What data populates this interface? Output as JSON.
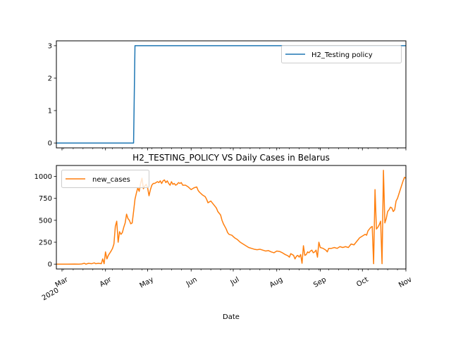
{
  "chart_data": [
    {
      "type": "line",
      "title": "",
      "xlabel": "",
      "ylabel": "",
      "x_range": [
        "2020-02-26",
        "2020-11-01"
      ],
      "ylim": [
        -0.15,
        3.15
      ],
      "yticks": [
        0,
        1,
        2,
        3
      ],
      "grid": false,
      "legend_loc": "upper right",
      "series": [
        {
          "name": "H2_Testing policy",
          "color": "#1f77b4",
          "points": [
            [
              "2020-02-26",
              0
            ],
            [
              "2020-04-21",
              0
            ],
            [
              "2020-04-22",
              3
            ],
            [
              "2020-11-01",
              3
            ]
          ]
        }
      ]
    },
    {
      "type": "line",
      "title": "H2_TESTING_POLICY VS Daily Cases in Belarus",
      "xlabel": "Date",
      "ylabel": "",
      "x_range": [
        "2020-02-26",
        "2020-11-01"
      ],
      "ylim": [
        -55,
        1125
      ],
      "yticks": [
        0,
        250,
        500,
        750,
        1000
      ],
      "grid": false,
      "legend_loc": "upper left",
      "series": [
        {
          "name": "new_cases",
          "color": "#ff7f0e",
          "points": [
            [
              "2020-02-26",
              0
            ],
            [
              "2020-03-01",
              0
            ],
            [
              "2020-03-05",
              0
            ],
            [
              "2020-03-10",
              1
            ],
            [
              "2020-03-13",
              0
            ],
            [
              "2020-03-15",
              2
            ],
            [
              "2020-03-17",
              10
            ],
            [
              "2020-03-18",
              0
            ],
            [
              "2020-03-20",
              10
            ],
            [
              "2020-03-22",
              5
            ],
            [
              "2020-03-24",
              15
            ],
            [
              "2020-03-25",
              5
            ],
            [
              "2020-03-27",
              10
            ],
            [
              "2020-03-29",
              5
            ],
            [
              "2020-03-30",
              60
            ],
            [
              "2020-03-31",
              5
            ],
            [
              "2020-04-01",
              140
            ],
            [
              "2020-04-02",
              60
            ],
            [
              "2020-04-03",
              100
            ],
            [
              "2020-04-05",
              150
            ],
            [
              "2020-04-06",
              180
            ],
            [
              "2020-04-07",
              230
            ],
            [
              "2020-04-08",
              430
            ],
            [
              "2020-04-09",
              490
            ],
            [
              "2020-04-10",
              250
            ],
            [
              "2020-04-11",
              370
            ],
            [
              "2020-04-12",
              340
            ],
            [
              "2020-04-13",
              360
            ],
            [
              "2020-04-14",
              420
            ],
            [
              "2020-04-15",
              470
            ],
            [
              "2020-04-16",
              570
            ],
            [
              "2020-04-17",
              520
            ],
            [
              "2020-04-18",
              500
            ],
            [
              "2020-04-19",
              460
            ],
            [
              "2020-04-20",
              470
            ],
            [
              "2020-04-21",
              600
            ],
            [
              "2020-04-22",
              740
            ],
            [
              "2020-04-23",
              810
            ],
            [
              "2020-04-24",
              870
            ],
            [
              "2020-04-25",
              830
            ],
            [
              "2020-04-26",
              920
            ],
            [
              "2020-04-27",
              980
            ],
            [
              "2020-04-28",
              860
            ],
            [
              "2020-04-29",
              890
            ],
            [
              "2020-04-30",
              910
            ],
            [
              "2020-05-01",
              870
            ],
            [
              "2020-05-02",
              780
            ],
            [
              "2020-05-03",
              850
            ],
            [
              "2020-05-04",
              900
            ],
            [
              "2020-05-05",
              920
            ],
            [
              "2020-05-06",
              920
            ],
            [
              "2020-05-07",
              930
            ],
            [
              "2020-05-08",
              940
            ],
            [
              "2020-05-09",
              930
            ],
            [
              "2020-05-10",
              950
            ],
            [
              "2020-05-11",
              920
            ],
            [
              "2020-05-12",
              950
            ],
            [
              "2020-05-13",
              960
            ],
            [
              "2020-05-14",
              930
            ],
            [
              "2020-05-15",
              950
            ],
            [
              "2020-05-16",
              920
            ],
            [
              "2020-05-17",
              900
            ],
            [
              "2020-05-18",
              940
            ],
            [
              "2020-05-19",
              910
            ],
            [
              "2020-05-20",
              920
            ],
            [
              "2020-05-21",
              900
            ],
            [
              "2020-05-22",
              910
            ],
            [
              "2020-05-23",
              930
            ],
            [
              "2020-05-24",
              920
            ],
            [
              "2020-05-25",
              930
            ],
            [
              "2020-05-26",
              900
            ],
            [
              "2020-05-28",
              900
            ],
            [
              "2020-05-30",
              880
            ],
            [
              "2020-06-01",
              850
            ],
            [
              "2020-06-03",
              870
            ],
            [
              "2020-06-05",
              880
            ],
            [
              "2020-06-06",
              840
            ],
            [
              "2020-06-07",
              820
            ],
            [
              "2020-06-09",
              790
            ],
            [
              "2020-06-11",
              770
            ],
            [
              "2020-06-12",
              740
            ],
            [
              "2020-06-13",
              700
            ],
            [
              "2020-06-15",
              720
            ],
            [
              "2020-06-17",
              680
            ],
            [
              "2020-06-19",
              640
            ],
            [
              "2020-06-20",
              600
            ],
            [
              "2020-06-22",
              560
            ],
            [
              "2020-06-23",
              500
            ],
            [
              "2020-06-24",
              460
            ],
            [
              "2020-06-25",
              430
            ],
            [
              "2020-06-26",
              400
            ],
            [
              "2020-06-27",
              360
            ],
            [
              "2020-06-28",
              340
            ],
            [
              "2020-06-30",
              330
            ],
            [
              "2020-07-02",
              300
            ],
            [
              "2020-07-04",
              280
            ],
            [
              "2020-07-06",
              250
            ],
            [
              "2020-07-08",
              230
            ],
            [
              "2020-07-10",
              210
            ],
            [
              "2020-07-12",
              190
            ],
            [
              "2020-07-14",
              180
            ],
            [
              "2020-07-16",
              170
            ],
            [
              "2020-07-18",
              165
            ],
            [
              "2020-07-20",
              170
            ],
            [
              "2020-07-22",
              160
            ],
            [
              "2020-07-24",
              150
            ],
            [
              "2020-07-26",
              155
            ],
            [
              "2020-07-28",
              140
            ],
            [
              "2020-07-30",
              130
            ],
            [
              "2020-08-01",
              150
            ],
            [
              "2020-08-03",
              145
            ],
            [
              "2020-08-05",
              130
            ],
            [
              "2020-08-07",
              110
            ],
            [
              "2020-08-09",
              95
            ],
            [
              "2020-08-10",
              80
            ],
            [
              "2020-08-11",
              120
            ],
            [
              "2020-08-12",
              110
            ],
            [
              "2020-08-13",
              100
            ],
            [
              "2020-08-14",
              60
            ],
            [
              "2020-08-15",
              90
            ],
            [
              "2020-08-16",
              100
            ],
            [
              "2020-08-17",
              80
            ],
            [
              "2020-08-18",
              110
            ],
            [
              "2020-08-19",
              10
            ],
            [
              "2020-08-20",
              210
            ],
            [
              "2020-08-21",
              100
            ],
            [
              "2020-08-22",
              110
            ],
            [
              "2020-08-23",
              140
            ],
            [
              "2020-08-24",
              130
            ],
            [
              "2020-08-25",
              150
            ],
            [
              "2020-08-26",
              160
            ],
            [
              "2020-08-27",
              130
            ],
            [
              "2020-08-28",
              140
            ],
            [
              "2020-08-29",
              160
            ],
            [
              "2020-08-30",
              80
            ],
            [
              "2020-08-31",
              250
            ],
            [
              "2020-09-01",
              190
            ],
            [
              "2020-09-03",
              180
            ],
            [
              "2020-09-05",
              160
            ],
            [
              "2020-09-06",
              140
            ],
            [
              "2020-09-07",
              180
            ],
            [
              "2020-09-09",
              180
            ],
            [
              "2020-09-11",
              190
            ],
            [
              "2020-09-13",
              180
            ],
            [
              "2020-09-15",
              200
            ],
            [
              "2020-09-17",
              190
            ],
            [
              "2020-09-19",
              200
            ],
            [
              "2020-09-21",
              190
            ],
            [
              "2020-09-23",
              230
            ],
            [
              "2020-09-25",
              220
            ],
            [
              "2020-09-27",
              260
            ],
            [
              "2020-09-29",
              300
            ],
            [
              "2020-10-01",
              320
            ],
            [
              "2020-10-03",
              340
            ],
            [
              "2020-10-04",
              330
            ],
            [
              "2020-10-05",
              380
            ],
            [
              "2020-10-06",
              400
            ],
            [
              "2020-10-07",
              420
            ],
            [
              "2020-10-08",
              430
            ],
            [
              "2020-10-09",
              5
            ],
            [
              "2020-10-10",
              850
            ],
            [
              "2020-10-11",
              400
            ],
            [
              "2020-10-12",
              420
            ],
            [
              "2020-10-13",
              450
            ],
            [
              "2020-10-14",
              490
            ],
            [
              "2020-10-15",
              5
            ],
            [
              "2020-10-16",
              1070
            ],
            [
              "2020-10-17",
              470
            ],
            [
              "2020-10-18",
              520
            ],
            [
              "2020-10-19",
              600
            ],
            [
              "2020-10-20",
              620
            ],
            [
              "2020-10-21",
              650
            ],
            [
              "2020-10-22",
              640
            ],
            [
              "2020-10-23",
              600
            ],
            [
              "2020-10-24",
              620
            ],
            [
              "2020-10-25",
              720
            ],
            [
              "2020-10-26",
              750
            ],
            [
              "2020-10-27",
              800
            ],
            [
              "2020-10-28",
              850
            ],
            [
              "2020-10-29",
              900
            ],
            [
              "2020-10-30",
              950
            ],
            [
              "2020-10-31",
              990
            ],
            [
              "2020-11-01",
              980
            ]
          ]
        }
      ]
    }
  ],
  "shared_x_axis": {
    "tick_labels": [
      {
        "date": "2020-03-01",
        "label": "Mar",
        "sublabel": "2020"
      },
      {
        "date": "2020-04-01",
        "label": "Apr",
        "sublabel": ""
      },
      {
        "date": "2020-05-01",
        "label": "May",
        "sublabel": ""
      },
      {
        "date": "2020-06-01",
        "label": "Jun",
        "sublabel": ""
      },
      {
        "date": "2020-07-01",
        "label": "Jul",
        "sublabel": ""
      },
      {
        "date": "2020-08-01",
        "label": "Aug",
        "sublabel": ""
      },
      {
        "date": "2020-09-01",
        "label": "Sep",
        "sublabel": ""
      },
      {
        "date": "2020-10-01",
        "label": "Oct",
        "sublabel": ""
      },
      {
        "date": "2020-11-01",
        "label": "Nov",
        "sublabel": ""
      }
    ]
  }
}
